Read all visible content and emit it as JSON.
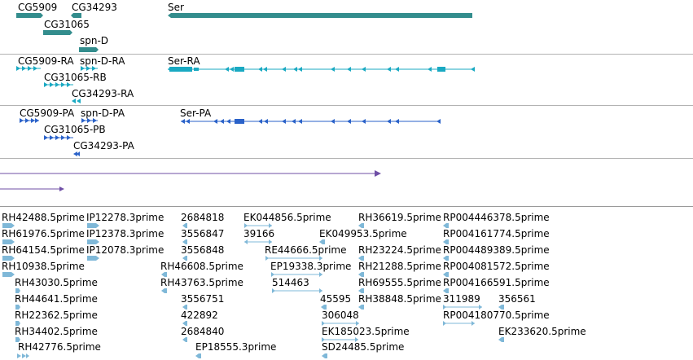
{
  "colors": {
    "gene": "#338d8d",
    "transcript": "#19a9c2",
    "cds": "#2a62c9",
    "purple": "#6f4fa6",
    "est": "#7fb8d8",
    "divider": "#b3b3b3"
  },
  "genes": {
    "labels": [
      "CG5909",
      "CG34293",
      "Ser",
      "CG31065",
      "spn-D"
    ]
  },
  "transcripts": {
    "labels": [
      "CG5909-RA",
      "spn-D-RA",
      "Ser-RA",
      "CG31065-RB",
      "CG34293-RA"
    ]
  },
  "proteins": {
    "labels": [
      "CG5909-PA",
      "spn-D-PA",
      "Ser-PA",
      "CG31065-PB",
      "CG34293-PA"
    ]
  },
  "ests": {
    "labels": [
      "RH42488.5prime",
      "IP12278.3prime",
      "2684818",
      "EK044856.5prime",
      "RH36619.5prime",
      "RP004446378.5prime",
      "RH61976.5prime",
      "IP12378.3prime",
      "3556847",
      "39166",
      "EK049953.5prime",
      "RP004161774.5prime",
      "RH64154.5prime",
      "IP12078.3prime",
      "3556848",
      "RE44666.5prime",
      "RH23224.5prime",
      "RP004489389.5prime",
      "RH10938.5prime",
      "RH46608.5prime",
      "EP19338.3prime",
      "RH21288.5prime",
      "RP004081572.5prime",
      "RH43030.5prime",
      "RH43763.5prime",
      "514463",
      "RH69555.5prime",
      "RP004166591.5prime",
      "RH44641.5prime",
      "3556751",
      "45595",
      "RH38848.5prime",
      "311989",
      "356561",
      "RH22362.5prime",
      "422892",
      "306048",
      "RP004180770.5prime",
      "RH34402.5prime",
      "2684840",
      "EK185023.5prime",
      "EK233620.5prime",
      "RH42776.5prime",
      "EP18555.3prime",
      "SD24485.5prime"
    ]
  }
}
